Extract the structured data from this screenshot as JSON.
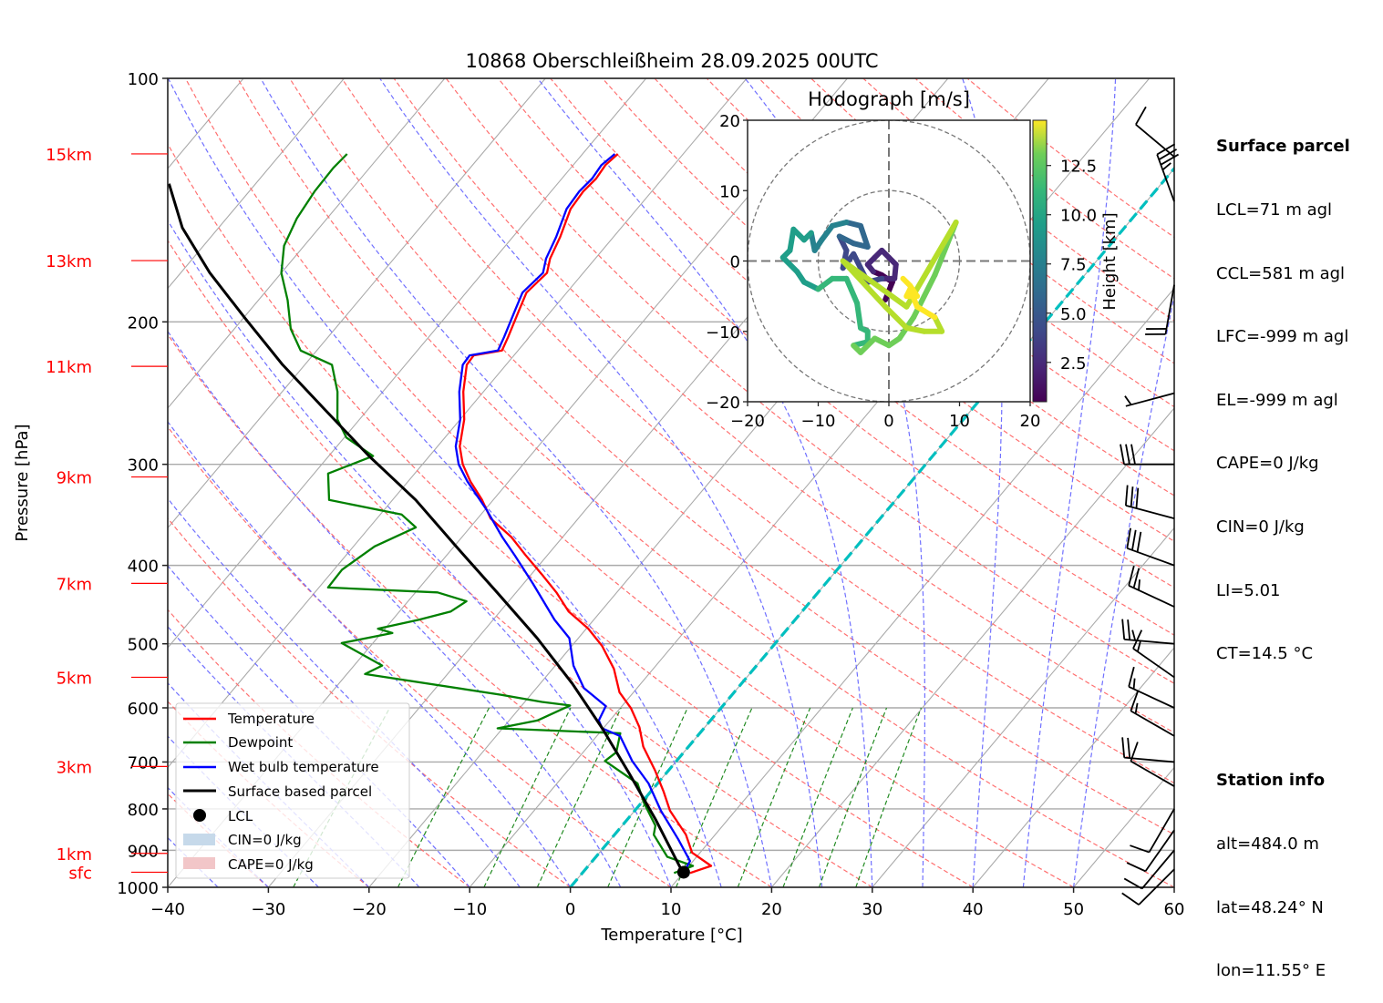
{
  "chart_data": {
    "type": "line",
    "title": "10868 Oberschleißheim 28.09.2025 00UTC",
    "xlabel": "Temperature [°C]",
    "ylabel": "Pressure [hPa]",
    "xlim": [
      -40,
      60
    ],
    "ylim": [
      1000,
      100
    ],
    "yscale": "log",
    "skew": true,
    "x_ticks": [
      "−40",
      "−30",
      "−20",
      "−10",
      "0",
      "10",
      "20",
      "30",
      "40",
      "50",
      "60"
    ],
    "x_tick_values": [
      -40,
      -30,
      -20,
      -10,
      0,
      10,
      20,
      30,
      40,
      50,
      60
    ],
    "y_ticks": [
      "100",
      "200",
      "300",
      "400",
      "500",
      "600",
      "700",
      "800",
      "900",
      "1000"
    ],
    "y_tick_values": [
      100,
      200,
      300,
      400,
      500,
      600,
      700,
      800,
      900,
      1000
    ],
    "height_labels": [
      {
        "label": "15km",
        "p": 124
      },
      {
        "label": "13km",
        "p": 168
      },
      {
        "label": "11km",
        "p": 227
      },
      {
        "label": "9km",
        "p": 311
      },
      {
        "label": "7km",
        "p": 421
      },
      {
        "label": "5km",
        "p": 550
      },
      {
        "label": "3km",
        "p": 709
      },
      {
        "label": "1km",
        "p": 908
      },
      {
        "label": "sfc",
        "p": 958
      }
    ],
    "height_color": "#ff0000",
    "series": [
      {
        "name": "Temperature",
        "color": "#ff0000",
        "p": [
          960,
          941,
          906,
          861,
          804,
          762,
          716,
          670,
          634,
          601,
          574,
          537,
          503,
          479,
          456,
          432,
          410,
          389,
          369,
          350,
          332,
          315,
          300,
          285,
          264,
          244,
          226,
          220,
          217,
          209,
          193,
          184,
          174,
          167,
          157,
          145,
          138,
          133,
          128,
          124
        ],
        "T": [
          10.7,
          12.2,
          9.2,
          7.1,
          3.5,
          1.3,
          -1.4,
          -4.5,
          -6.5,
          -8.9,
          -11.4,
          -13.9,
          -17.0,
          -19.8,
          -23.2,
          -26.0,
          -29.0,
          -32.1,
          -35.1,
          -38.7,
          -41.1,
          -43.8,
          -46.0,
          -47.8,
          -49.6,
          -52.0,
          -53.9,
          -54.0,
          -51.6,
          -52.1,
          -53.3,
          -54.0,
          -53.6,
          -54.5,
          -55.3,
          -56.6,
          -56.8,
          -56.6,
          -56.8,
          -56.5
        ]
      },
      {
        "name": "Dewpoint",
        "color": "#008000",
        "p": [
          960,
          941,
          917,
          861,
          839,
          787,
          744,
          698,
          681,
          645,
          636,
          622,
          596,
          590,
          578,
          545,
          532,
          499,
          485,
          479,
          467,
          456,
          443,
          432,
          426,
          405,
          379,
          359,
          346,
          332,
          308,
          293,
          278,
          264,
          244,
          226,
          217,
          204,
          188,
          174,
          161,
          149,
          138,
          129,
          124
        ],
        "T": [
          9.1,
          10.4,
          7.1,
          3.9,
          3.3,
          0.3,
          -2.0,
          -7.1,
          -6.7,
          -7.9,
          -20.5,
          -17.2,
          -15.2,
          -18.3,
          -23.0,
          -38.2,
          -37.2,
          -43.1,
          -38.9,
          -40.7,
          -37.4,
          -34.9,
          -34.2,
          -37.8,
          -49.1,
          -49.2,
          -47.9,
          -45.4,
          -47.9,
          -56.3,
          -58.6,
          -55.6,
          -59.8,
          -62.2,
          -64.5,
          -67.3,
          -71.6,
          -74.4,
          -77.1,
          -80.0,
          -82.0,
          -83.0,
          -83.5,
          -83.6,
          -83.4
        ]
      },
      {
        "name": "Wet bulb temperature",
        "color": "#0000ff",
        "p": [
          957,
          928,
          872,
          804,
          744,
          698,
          650,
          636,
          622,
          597,
          567,
          532,
          492,
          467,
          421,
          389,
          369,
          341,
          315,
          300,
          285,
          264,
          244,
          226,
          220,
          217,
          209,
          193,
          184,
          174,
          167,
          157,
          145,
          138,
          133,
          128,
          124
        ],
        "T": [
          10.0,
          9.7,
          6.7,
          2.6,
          -0.9,
          -4.4,
          -7.7,
          -10.1,
          -11.1,
          -11.6,
          -15.3,
          -18.2,
          -20.9,
          -23.9,
          -29.1,
          -33.2,
          -36.0,
          -39.9,
          -44.1,
          -46.4,
          -48.2,
          -50.0,
          -52.4,
          -54.3,
          -54.4,
          -52.0,
          -52.5,
          -53.7,
          -54.4,
          -54.0,
          -54.9,
          -55.7,
          -57.0,
          -57.2,
          -57.0,
          -57.2,
          -56.8
        ]
      },
      {
        "name": "Surface based parcel",
        "color": "#000000",
        "p": [
          960,
          826,
          724,
          636,
          560,
          492,
          432,
          379,
          332,
          293,
          257,
          226,
          198,
          174,
          153,
          135
        ],
        "T": [
          10.0,
          2.9,
          -3.6,
          -10.1,
          -16.8,
          -24.1,
          -31.9,
          -39.8,
          -47.7,
          -56.0,
          -64.2,
          -72.2,
          -79.8,
          -87.1,
          -93.6,
          -98.6
        ]
      }
    ],
    "lcl": {
      "label": "LCL",
      "p": 958,
      "T": 10.0
    },
    "legend": {
      "placement": "lower-left",
      "entries": [
        "Temperature",
        "Dewpoint",
        "Wet bulb temperature",
        "Surface based parcel",
        "LCL",
        "CIN=0 J/kg",
        "CAPE=0 J/kg"
      ],
      "cin_color": "#c6d9ea",
      "cape_color": "#f2c6c8"
    },
    "background_lines": {
      "isotherm_color": "#aaaaaa",
      "dry_adiabat_color": "#ff7070",
      "moist_adiabat_color": "#7070ff",
      "mixing_ratio_color": "#228b22",
      "zero_isotherm_color": "#00bfbf"
    },
    "hodograph": {
      "title": "Hodograph [m/s]",
      "xlim": [
        -20,
        20
      ],
      "ylim": [
        -20,
        20
      ],
      "x_ticks": [
        "−20",
        "−10",
        "0",
        "10",
        "20"
      ],
      "y_ticks": [
        "20",
        "10",
        "0",
        "−10",
        "−20"
      ],
      "tick_values": [
        -20,
        -10,
        0,
        10,
        20
      ],
      "rings": [
        10,
        20
      ],
      "colorbar_label": "Height [km]",
      "colorbar_ticks": [
        "2.5",
        "5.0",
        "7.5",
        "10.0",
        "12.5"
      ],
      "colorbar_tick_values": [
        2.5,
        5.0,
        7.5,
        10.0,
        12.5
      ],
      "colorbar_range": [
        0.5,
        14.8
      ],
      "u": [
        -0.5,
        0.5,
        -1.0,
        -2.2,
        -3.0,
        -2.0,
        -1.0,
        0.0,
        1.0,
        0.8,
        -1.0,
        -3.0,
        -5.0,
        -6.5,
        -6.0,
        -7.0,
        -5.0,
        -3.0,
        -4.0,
        -6.0,
        -8.0,
        -9.5,
        -10.5,
        -11.0,
        -12.0,
        -13.5,
        -14.0,
        -15.0,
        -13.0,
        -12.0,
        -10.0,
        -8.0,
        -6.0,
        -4.5,
        -4.0,
        -3.0,
        -3.0,
        -5.0,
        -4.0,
        -2.0,
        0.0,
        1.5,
        3.5,
        6.5,
        9.5,
        2.5,
        -6.5,
        -0.5,
        2.5,
        5.0,
        7.5,
        6.5,
        4.0,
        3.0,
        2.5,
        4.0,
        3.0,
        2.0
      ],
      "v": [
        -5.5,
        -3.0,
        -2.0,
        -1.5,
        -0.5,
        0.5,
        1.5,
        0.5,
        -0.5,
        -2.5,
        -2.5,
        -3.0,
        1.0,
        -1.0,
        1.5,
        3.5,
        2.5,
        2.0,
        5.0,
        5.5,
        5.0,
        3.0,
        1.5,
        4.0,
        3.0,
        4.5,
        1.5,
        0.5,
        -1.5,
        -3.0,
        -4.0,
        -2.5,
        -2.5,
        -6.0,
        -9.5,
        -10.0,
        -11.5,
        -12.0,
        -13.0,
        -11.0,
        -12.0,
        -11.0,
        -8.0,
        -2.0,
        5.5,
        -6.5,
        0.0,
        -6.5,
        -9.5,
        -10.0,
        -10.0,
        -8.0,
        -6.5,
        -4.0,
        -5.0,
        -5.0,
        -3.5,
        -2.5
      ],
      "h": [
        0.5,
        1.0,
        1.5,
        2.0,
        2.2,
        2.4,
        2.6,
        2.8,
        3.0,
        3.2,
        3.4,
        3.6,
        3.8,
        4.0,
        4.4,
        4.8,
        5.2,
        5.6,
        6.0,
        6.4,
        6.8,
        7.2,
        7.6,
        7.8,
        8.0,
        8.2,
        8.4,
        8.6,
        8.8,
        9.0,
        9.2,
        9.4,
        9.6,
        9.8,
        10.0,
        10.2,
        10.4,
        10.6,
        10.8,
        11.0,
        11.2,
        11.4,
        11.6,
        11.8,
        12.0,
        12.2,
        12.4,
        12.6,
        12.8,
        13.0,
        13.2,
        13.4,
        13.6,
        13.8,
        14.0,
        14.2,
        14.4,
        14.6
      ]
    },
    "wind_barbs": [
      {
        "p": 125,
        "dir": 310,
        "kt": 10
      },
      {
        "p": 142,
        "dir": 340,
        "kt": 35
      },
      {
        "p": 180,
        "dir": 190,
        "kt": 20
      },
      {
        "p": 245,
        "dir": 255,
        "kt": 5
      },
      {
        "p": 300,
        "dir": 270,
        "kt": 30
      },
      {
        "p": 350,
        "dir": 285,
        "kt": 30
      },
      {
        "p": 400,
        "dir": 290,
        "kt": 30
      },
      {
        "p": 450,
        "dir": 295,
        "kt": 25
      },
      {
        "p": 500,
        "dir": 275,
        "kt": 25
      },
      {
        "p": 550,
        "dir": 305,
        "kt": 15
      },
      {
        "p": 600,
        "dir": 295,
        "kt": 15
      },
      {
        "p": 650,
        "dir": 300,
        "kt": 15
      },
      {
        "p": 700,
        "dir": 275,
        "kt": 20
      },
      {
        "p": 750,
        "dir": 300,
        "kt": 10
      },
      {
        "p": 800,
        "dir": 210,
        "kt": 10
      },
      {
        "p": 850,
        "dir": 215,
        "kt": 10
      },
      {
        "p": 900,
        "dir": 220,
        "kt": 10
      },
      {
        "p": 950,
        "dir": 225,
        "kt": 10
      }
    ]
  },
  "info": {
    "parcel_title": "Surface parcel",
    "parcel_lines": [
      "LCL=71 m agl",
      "CCL=581 m agl",
      "LFC=-999 m agl",
      "EL=-999 m agl",
      "CAPE=0 J/kg",
      "CIN=0 J/kg",
      "LI=5.01",
      "CT=14.5 °C"
    ],
    "station_title": "Station info",
    "station_lines": [
      "alt=484.0 m",
      "lat=48.24° N",
      "lon=11.55° E"
    ]
  }
}
